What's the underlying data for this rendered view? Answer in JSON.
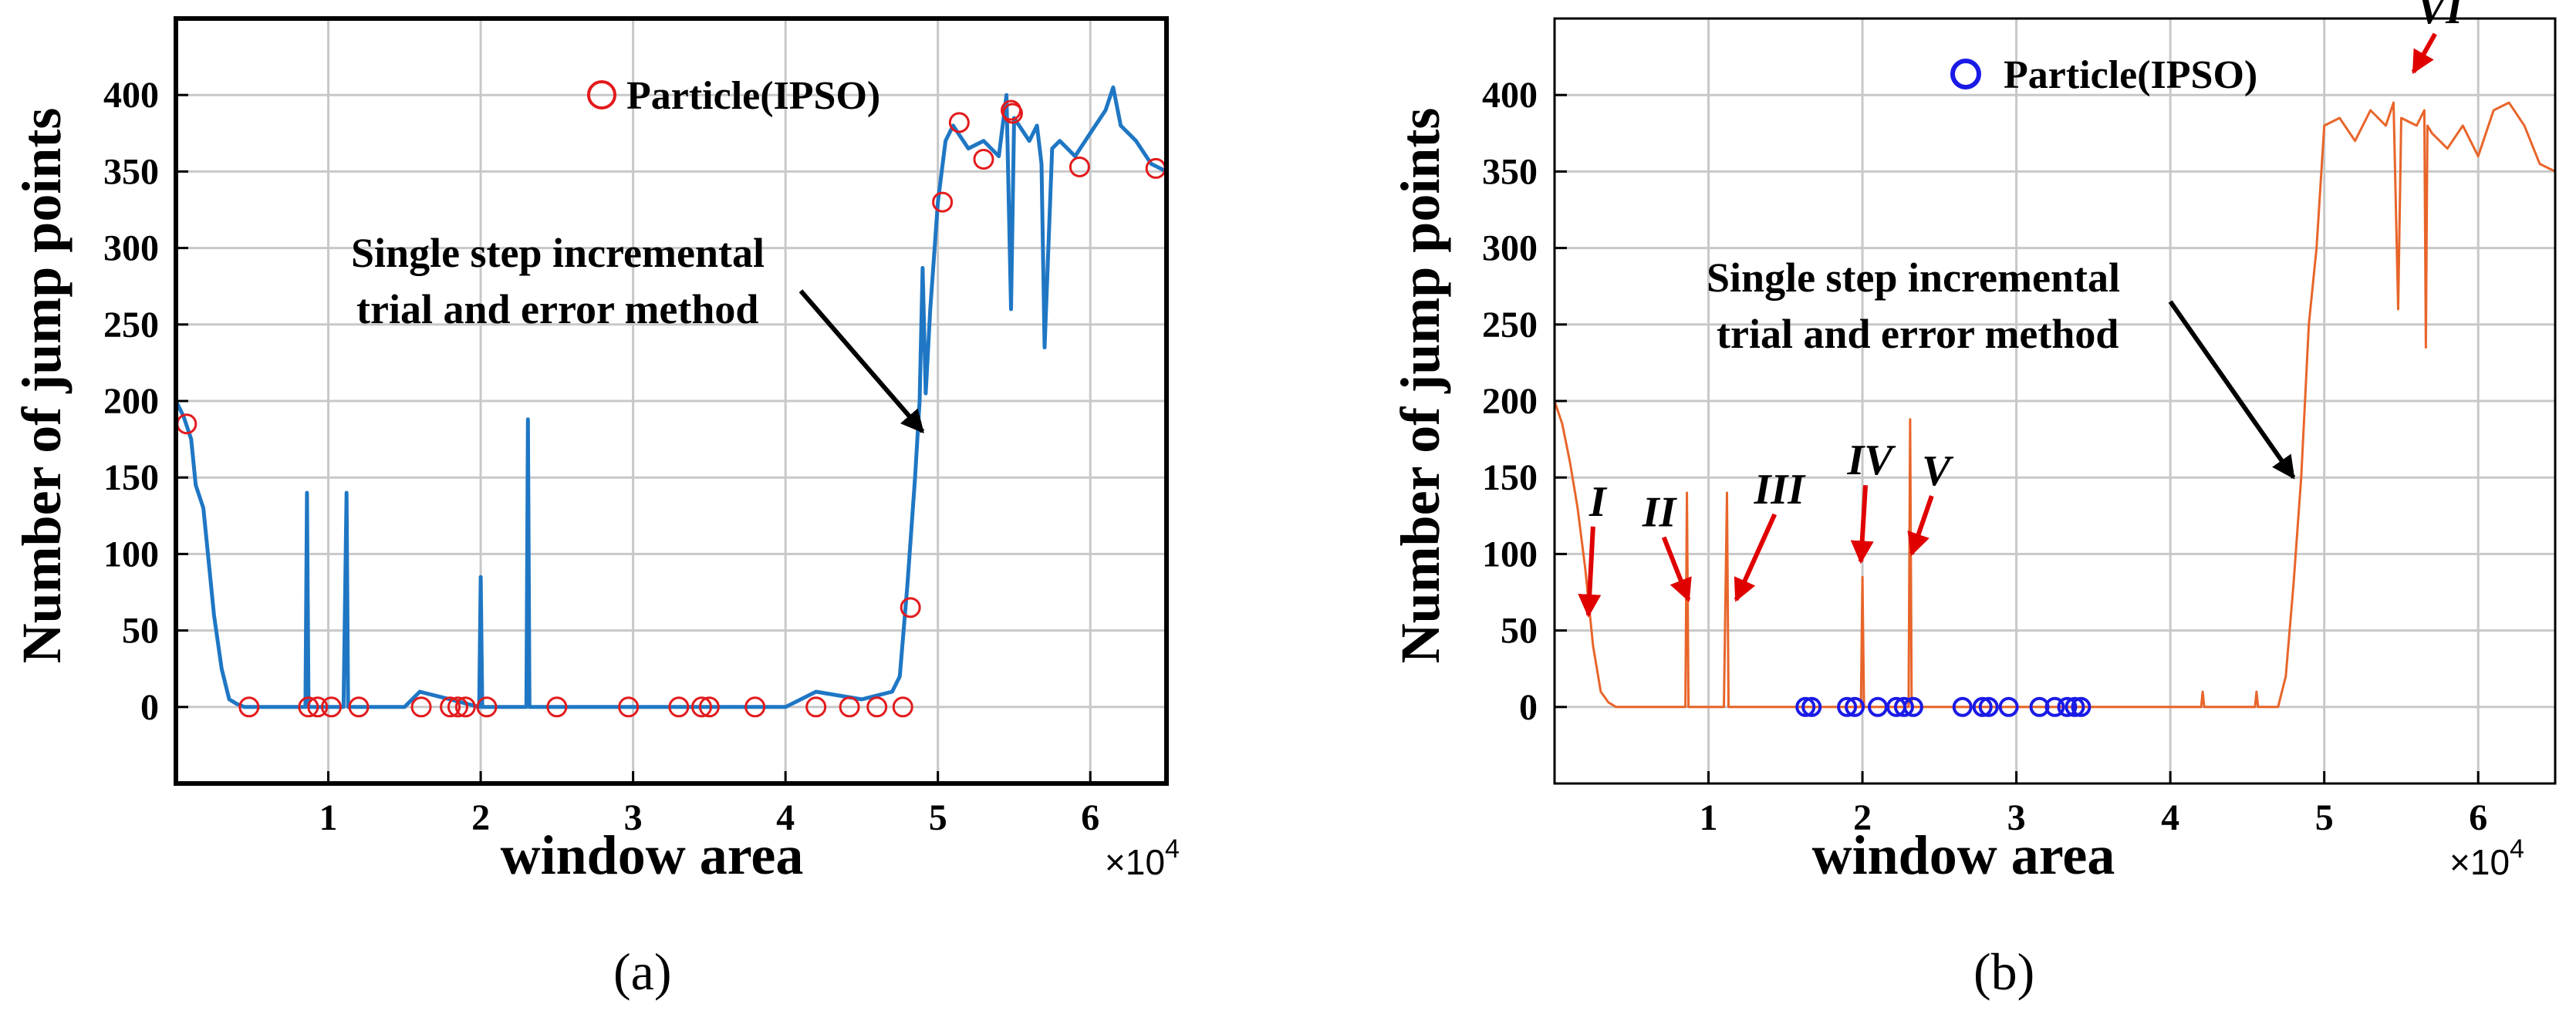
{
  "chart_data": [
    {
      "id": "a",
      "type": "line",
      "caption": "(a)",
      "xlabel": "window area",
      "ylabel": "Number of jump points",
      "x_exponent_label": "×10",
      "x_exponent_power": "4",
      "xlim": [
        0,
        6.5
      ],
      "ylim": [
        -50,
        450
      ],
      "xticks": [
        1,
        2,
        3,
        4,
        5,
        6
      ],
      "xtick_labels": [
        "1",
        "2",
        "3",
        "4",
        "5",
        "6"
      ],
      "yticks": [
        0,
        50,
        100,
        150,
        200,
        250,
        300,
        350,
        400
      ],
      "ytick_labels": [
        "0",
        "50",
        "100",
        "150",
        "200",
        "250",
        "300",
        "350",
        "400"
      ],
      "grid": true,
      "series_color": "#1f77c4",
      "marker_color": "#e31a1c",
      "legend": {
        "label": "Particle(IPSO)",
        "marker": "circle",
        "color": "#e31a1c",
        "placement": "top-center"
      },
      "annotation": {
        "lines": [
          "Single step incremental",
          "trial and error method"
        ],
        "arrow_to": [
          4.9,
          180
        ],
        "arrow_from": [
          4.1,
          272
        ]
      },
      "series": [
        {
          "name": "Number of jump points",
          "x": [
            0,
            0.05,
            0.1,
            0.13,
            0.18,
            0.22,
            0.25,
            0.3,
            0.35,
            0.4,
            0.45,
            0.5,
            0.6,
            0.85,
            0.86,
            0.87,
            0.88,
            1.1,
            1.12,
            1.13,
            1.14,
            1.16,
            1.5,
            1.6,
            1.8,
            1.99,
            2.0,
            2.01,
            2.02,
            2.3,
            2.31,
            2.32,
            2.33,
            3.0,
            4.0,
            4.2,
            4.5,
            4.7,
            4.75,
            4.8,
            4.85,
            4.88,
            4.9,
            4.92,
            4.95,
            5.0,
            5.05,
            5.1,
            5.2,
            5.3,
            5.4,
            5.45,
            5.48,
            5.5,
            5.6,
            5.65,
            5.68,
            5.7,
            5.75,
            5.8,
            5.9,
            6.0,
            6.1,
            6.15,
            6.2,
            6.3,
            6.4,
            6.5
          ],
          "y": [
            200,
            190,
            175,
            145,
            130,
            90,
            60,
            25,
            5,
            2,
            0,
            0,
            0,
            0,
            140,
            0,
            0,
            0,
            140,
            0,
            0,
            0,
            0,
            10,
            5,
            0,
            85,
            0,
            0,
            0,
            188,
            0,
            0,
            0,
            0,
            10,
            5,
            10,
            20,
            80,
            150,
            200,
            287,
            205,
            260,
            330,
            370,
            380,
            365,
            370,
            360,
            400,
            260,
            385,
            370,
            380,
            355,
            235,
            365,
            370,
            360,
            375,
            390,
            405,
            380,
            370,
            355,
            350
          ]
        }
      ],
      "particles": {
        "name": "Particle(IPSO)",
        "x": [
          0.07,
          0.48,
          0.87,
          0.93,
          1.02,
          1.2,
          1.61,
          1.8,
          1.85,
          1.9,
          2.04,
          2.5,
          2.97,
          3.3,
          3.45,
          3.5,
          3.8,
          4.2,
          4.42,
          4.6,
          4.77,
          4.82,
          5.03,
          5.14,
          5.3,
          5.48,
          5.49,
          5.93,
          6.43
        ],
        "y": [
          185,
          0,
          0,
          0,
          0,
          0,
          0,
          0,
          0,
          0,
          0,
          0,
          0,
          0,
          0,
          0,
          0,
          0,
          0,
          0,
          0,
          65,
          330,
          382,
          358,
          390,
          388,
          353,
          352
        ]
      }
    },
    {
      "id": "b",
      "type": "line",
      "caption": "(b)",
      "xlabel": "window area",
      "ylabel": "Number of jump points",
      "x_exponent_label": "×10",
      "x_exponent_power": "4",
      "xlim": [
        0,
        6.5
      ],
      "ylim": [
        -50,
        450
      ],
      "xticks": [
        1,
        2,
        3,
        4,
        5,
        6
      ],
      "xtick_labels": [
        "1",
        "2",
        "3",
        "4",
        "5",
        "6"
      ],
      "yticks": [
        0,
        50,
        100,
        150,
        200,
        250,
        300,
        350,
        400
      ],
      "ytick_labels": [
        "0",
        "50",
        "100",
        "150",
        "200",
        "250",
        "300",
        "350",
        "400"
      ],
      "grid": true,
      "series_color": "#e8652a",
      "marker_color": "#1a1ae6",
      "legend": {
        "label": "Particle(IPSO)",
        "marker": "circle",
        "color": "#1a1ae6",
        "placement": "top-center"
      },
      "annotation": {
        "lines": [
          "Single step incremental",
          "trial and error method"
        ],
        "arrow_to": [
          4.8,
          150
        ],
        "arrow_from": [
          4.0,
          265
        ]
      },
      "region_labels": [
        {
          "label": "I",
          "text_at": [
            0.28,
            125
          ],
          "arrow_to": [
            0.22,
            60
          ]
        },
        {
          "label": "II",
          "text_at": [
            0.68,
            118
          ],
          "arrow_to": [
            0.87,
            70
          ]
        },
        {
          "label": "III",
          "text_at": [
            1.46,
            133
          ],
          "arrow_to": [
            1.18,
            70
          ]
        },
        {
          "label": "IV",
          "text_at": [
            2.05,
            152
          ],
          "arrow_to": [
            1.99,
            95
          ]
        },
        {
          "label": "V",
          "text_at": [
            2.48,
            145
          ],
          "arrow_to": [
            2.32,
            100
          ]
        },
        {
          "label": "VI",
          "text_at": [
            5.75,
            447
          ],
          "arrow_to": [
            5.58,
            415
          ]
        }
      ],
      "series": [
        {
          "name": "Number of jump points",
          "x": [
            0,
            0.05,
            0.1,
            0.15,
            0.2,
            0.25,
            0.3,
            0.35,
            0.4,
            0.5,
            0.85,
            0.86,
            0.87,
            0.88,
            1.1,
            1.12,
            1.13,
            1.14,
            1.3,
            1.99,
            2.0,
            2.01,
            2.3,
            2.31,
            2.32,
            2.5,
            4.2,
            4.21,
            4.22,
            4.5,
            4.55,
            4.56,
            4.57,
            4.7,
            4.75,
            4.8,
            4.85,
            4.9,
            4.95,
            5.0,
            5.1,
            5.2,
            5.3,
            5.4,
            5.45,
            5.48,
            5.5,
            5.6,
            5.65,
            5.66,
            5.67,
            5.7,
            5.8,
            5.9,
            6.0,
            6.1,
            6.2,
            6.3,
            6.4,
            6.5
          ],
          "y": [
            200,
            185,
            160,
            130,
            90,
            40,
            10,
            3,
            0,
            0,
            0,
            140,
            0,
            0,
            0,
            140,
            0,
            0,
            0,
            0,
            85,
            0,
            0,
            188,
            0,
            0,
            0,
            10,
            0,
            0,
            0,
            10,
            0,
            0,
            20,
            80,
            150,
            250,
            300,
            380,
            385,
            370,
            390,
            380,
            395,
            260,
            385,
            380,
            390,
            235,
            380,
            375,
            365,
            380,
            360,
            390,
            395,
            380,
            355,
            350
          ]
        }
      ],
      "particles": {
        "name": "Particle(IPSO)",
        "x": [
          1.63,
          1.67,
          1.9,
          1.95,
          2.1,
          2.22,
          2.27,
          2.33,
          2.65,
          2.78,
          2.82,
          2.95,
          3.15,
          3.25,
          3.33,
          3.38,
          3.42
        ],
        "y": [
          0,
          0,
          0,
          0,
          0,
          0,
          0,
          0,
          0,
          0,
          0,
          0,
          0,
          0,
          0,
          0,
          0
        ]
      }
    }
  ]
}
